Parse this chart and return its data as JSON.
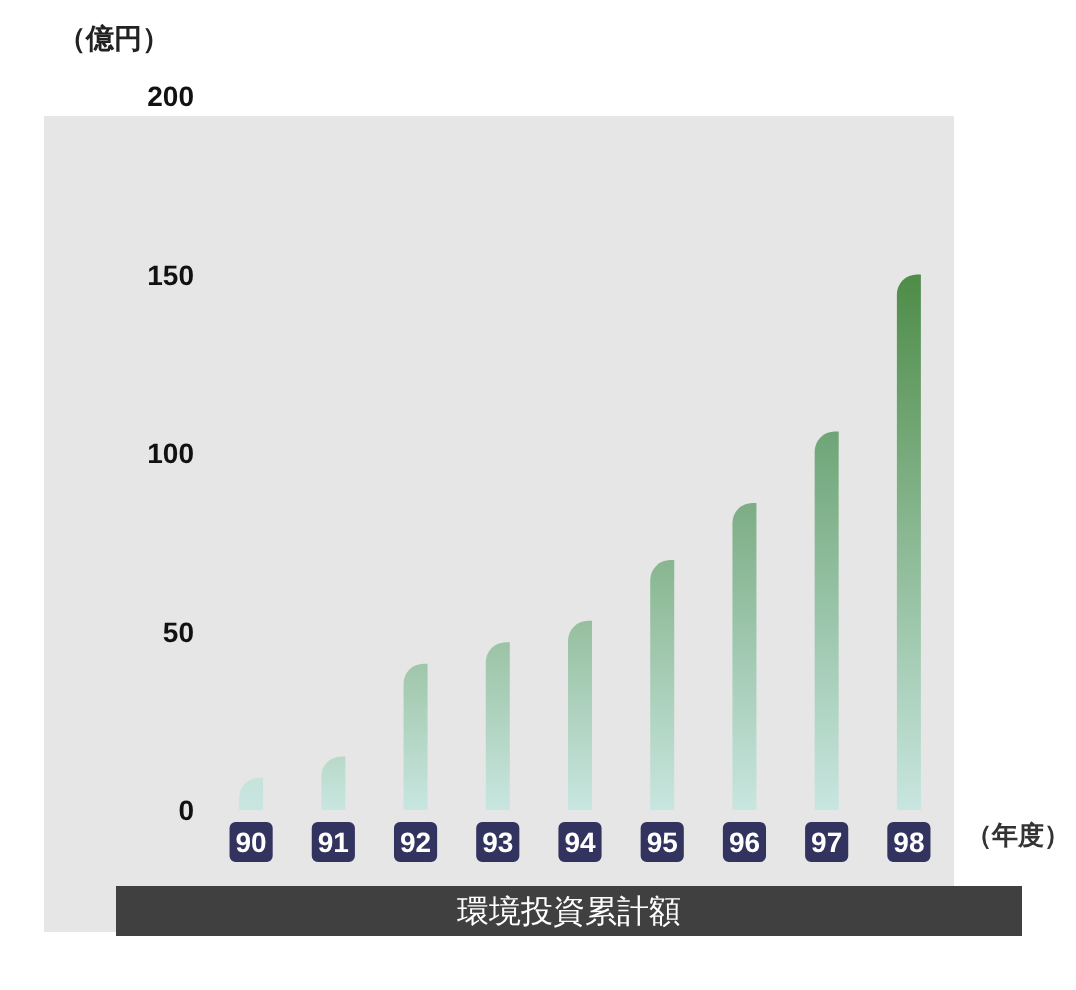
{
  "chart_data": {
    "type": "bar",
    "ylabel": "（億円）",
    "xlabel": "（年度）",
    "annotations": [
      "環境投資累計額"
    ],
    "categories": [
      "90",
      "91",
      "92",
      "93",
      "94",
      "95",
      "96",
      "97",
      "98"
    ],
    "values": [
      9,
      15,
      41,
      47,
      53,
      70,
      86,
      106,
      150
    ],
    "colors": [
      "#c5e3da",
      "#b8d9c9",
      "#9fc6aa",
      "#9bc3a5",
      "#96bf9f",
      "#88b690",
      "#7cad84",
      "#6ea576",
      "#4e8c48"
    ],
    "ylim": [
      0,
      200
    ],
    "yticks": [
      0,
      50,
      100,
      150,
      200
    ],
    "grid": false
  }
}
